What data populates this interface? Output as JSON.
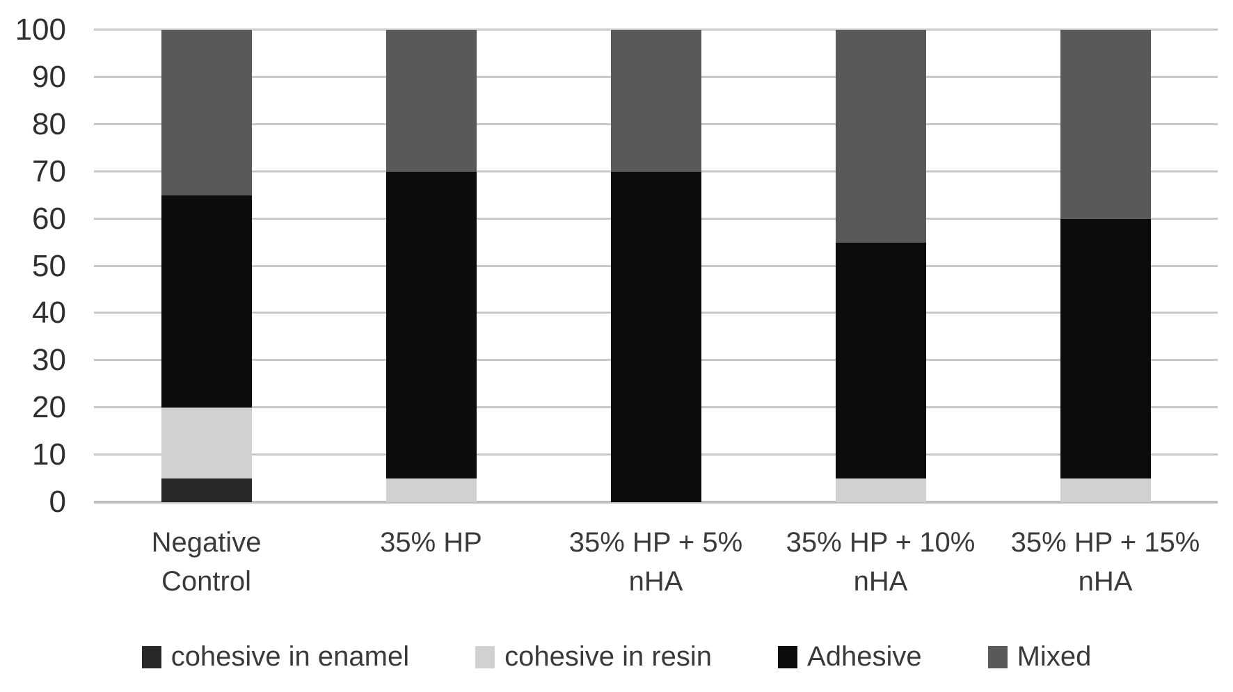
{
  "chart_data": {
    "type": "bar",
    "stacked": true,
    "title": "",
    "xlabel": "",
    "ylabel": "",
    "categories": [
      "Negative Control",
      "35% HP",
      "35% HP + 5% nHA",
      "35% HP + 10% nHA",
      "35% HP + 15% nHA"
    ],
    "series": [
      {
        "name": "cohesive in enamel",
        "color": "#282828",
        "values": [
          5,
          0,
          0,
          0,
          0
        ]
      },
      {
        "name": "cohesive in resin",
        "color": "#d1d1d1",
        "values": [
          15,
          5,
          0,
          5,
          5
        ]
      },
      {
        "name": "Adhesive",
        "color": "#0c0c0c",
        "values": [
          45,
          65,
          70,
          50,
          55
        ]
      },
      {
        "name": "Mixed",
        "color": "#595959",
        "values": [
          35,
          30,
          30,
          45,
          40
        ]
      }
    ],
    "ylim": [
      0,
      100
    ],
    "ytick_step": 10,
    "ytick_labels": [
      "0",
      "10",
      "20",
      "30",
      "40",
      "50",
      "60",
      "70",
      "80",
      "90",
      "100"
    ],
    "grid": true,
    "gridline_color": "#c9c9c9",
    "axis_line_color": "#bdbdbd",
    "text_color": "#3a3a3a",
    "background_color": "#ffffff",
    "legend_position": "bottom",
    "legend_entries": [
      "cohesive in enamel",
      "cohesive in resin",
      "Adhesive",
      "Mixed"
    ]
  }
}
